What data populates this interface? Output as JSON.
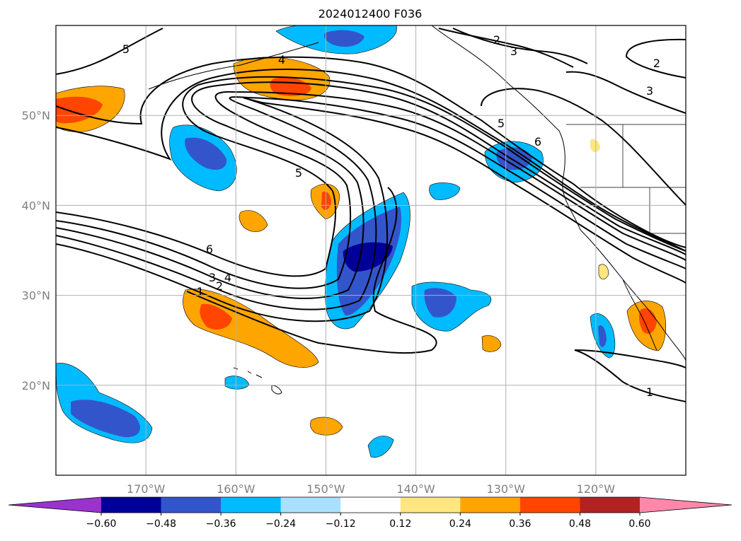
{
  "title": "2024012400 F036",
  "map": {
    "lon_range": [
      -180,
      -110
    ],
    "lat_range": [
      10,
      60
    ],
    "lon_ticks": [
      {
        "value": -170,
        "label": "170°W"
      },
      {
        "value": -160,
        "label": "160°W"
      },
      {
        "value": -150,
        "label": "150°W"
      },
      {
        "value": -140,
        "label": "140°W"
      },
      {
        "value": -130,
        "label": "130°W"
      },
      {
        "value": -120,
        "label": "120°W"
      }
    ],
    "lat_ticks": [
      {
        "value": 20,
        "label": "20°N"
      },
      {
        "value": 30,
        "label": "30°N"
      },
      {
        "value": 40,
        "label": "40°N"
      },
      {
        "value": 50,
        "label": "50°N"
      }
    ],
    "grid": true,
    "tick_label_color": "#808080",
    "contour_labels": [
      "5",
      "2",
      "3",
      "2",
      "3",
      "4",
      "5",
      "5",
      "6",
      "6",
      "3",
      "4",
      "1",
      "2",
      "1"
    ]
  },
  "colorbar": {
    "ticks": [
      "−0.60",
      "−0.48",
      "−0.36",
      "−0.24",
      "−0.12",
      "0.12",
      "0.24",
      "0.36",
      "0.48",
      "0.60"
    ],
    "colors": [
      "#9933cc",
      "#000099",
      "#3355cc",
      "#00bbff",
      "#aae0ff",
      "#ffffff",
      "#ffe680",
      "#ffa500",
      "#ff4500",
      "#b22222",
      "#ff88aa"
    ],
    "extend": "both"
  }
}
